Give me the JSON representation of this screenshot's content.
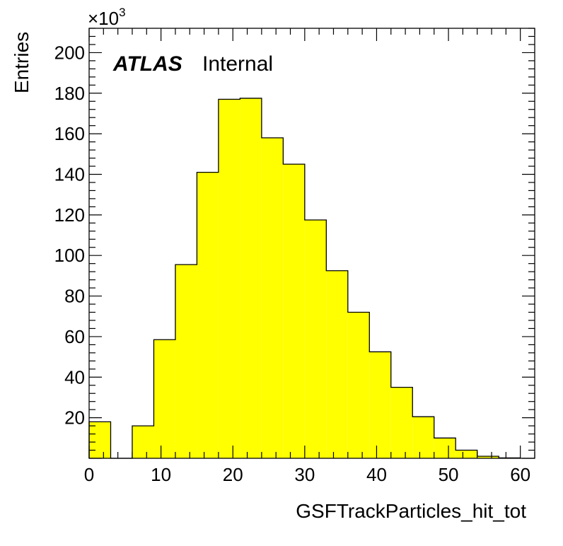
{
  "chart_data": {
    "type": "bar",
    "histogram": true,
    "bin_width": 3.0,
    "bin_edges_start": 0,
    "bins": [
      {
        "x_low": 0,
        "x_high": 3,
        "value": 18
      },
      {
        "x_low": 3,
        "x_high": 6,
        "value": 0
      },
      {
        "x_low": 6,
        "x_high": 9,
        "value": 16
      },
      {
        "x_low": 9,
        "x_high": 12,
        "value": 58.5
      },
      {
        "x_low": 12,
        "x_high": 15,
        "value": 95.5
      },
      {
        "x_low": 15,
        "x_high": 18,
        "value": 141
      },
      {
        "x_low": 18,
        "x_high": 21,
        "value": 177
      },
      {
        "x_low": 21,
        "x_high": 24,
        "value": 177.5
      },
      {
        "x_low": 24,
        "x_high": 27,
        "value": 158
      },
      {
        "x_low": 27,
        "x_high": 30,
        "value": 145
      },
      {
        "x_low": 30,
        "x_high": 33,
        "value": 117.5
      },
      {
        "x_low": 33,
        "x_high": 36,
        "value": 92.5
      },
      {
        "x_low": 36,
        "x_high": 39,
        "value": 72
      },
      {
        "x_low": 39,
        "x_high": 42,
        "value": 52.5
      },
      {
        "x_low": 42,
        "x_high": 45,
        "value": 35
      },
      {
        "x_low": 45,
        "x_high": 48,
        "value": 20.5
      },
      {
        "x_low": 48,
        "x_high": 51,
        "value": 10
      },
      {
        "x_low": 51,
        "x_high": 54,
        "value": 4
      },
      {
        "x_low": 54,
        "x_high": 57,
        "value": 1
      },
      {
        "x_low": 57,
        "x_high": 60,
        "value": 0.2
      }
    ],
    "xlim": [
      0,
      62
    ],
    "ylim": [
      0,
      212
    ],
    "x_ticks": [
      "0",
      "10",
      "20",
      "30",
      "40",
      "50",
      "60"
    ],
    "x_tick_values": [
      0,
      10,
      20,
      30,
      40,
      50,
      60
    ],
    "y_ticks": [
      "20",
      "40",
      "60",
      "80",
      "100",
      "120",
      "140",
      "160",
      "180",
      "200"
    ],
    "y_tick_values": [
      20,
      40,
      60,
      80,
      100,
      120,
      140,
      160,
      180,
      200
    ],
    "y_multiplier_base": "×10",
    "y_multiplier_exp": "3",
    "xlabel": "GSFTrackParticles_hit_tot",
    "ylabel": "Entries",
    "label_bold": "ATLAS",
    "label_plain": "Internal",
    "fill_color": "#ffff00",
    "line_color": "#000000",
    "grid": false
  }
}
